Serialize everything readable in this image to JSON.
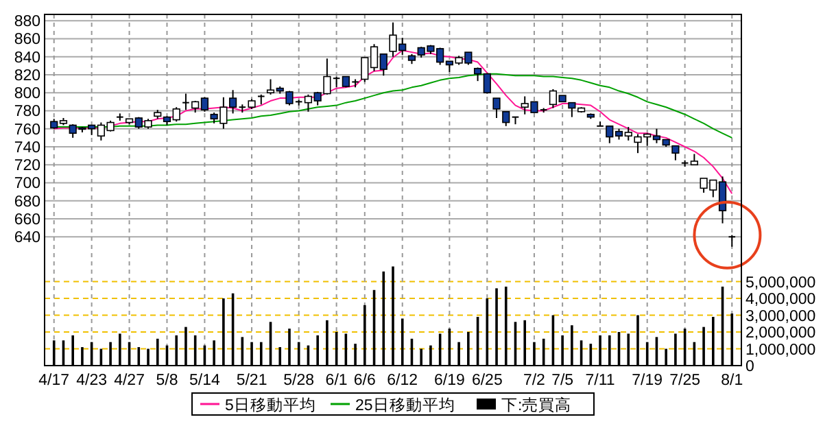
{
  "chart_data": {
    "type": "candlestick",
    "categories": [
      "4/17",
      null,
      null,
      null,
      "4/23",
      null,
      null,
      null,
      "4/27",
      null,
      null,
      null,
      "5/8",
      null,
      null,
      null,
      "5/14",
      null,
      null,
      null,
      null,
      "5/21",
      null,
      null,
      null,
      null,
      "5/28",
      null,
      null,
      null,
      "6/1",
      null,
      null,
      "6/6",
      null,
      null,
      null,
      "6/12",
      null,
      null,
      null,
      null,
      "6/19",
      null,
      null,
      null,
      "6/25",
      null,
      null,
      null,
      null,
      "7/2",
      null,
      null,
      "7/5",
      null,
      null,
      null,
      "7/11",
      null,
      null,
      null,
      null,
      "7/19",
      null,
      null,
      null,
      "7/25",
      null,
      null,
      null,
      null,
      "8/1"
    ],
    "ohlc": [
      [
        768,
        771,
        760,
        761
      ],
      [
        766,
        772,
        764,
        769
      ],
      [
        764,
        765,
        750,
        755
      ],
      [
        761,
        762,
        756,
        760
      ],
      [
        764,
        764,
        753,
        760
      ],
      [
        752,
        767,
        747,
        764
      ],
      [
        758,
        769,
        757,
        767
      ],
      [
        773,
        777,
        769,
        773
      ],
      [
        767,
        771,
        765,
        771
      ],
      [
        772,
        773,
        760,
        762
      ],
      [
        762,
        771,
        760,
        769
      ],
      [
        774,
        781,
        771,
        778
      ],
      [
        773,
        774,
        764,
        768
      ],
      [
        770,
        784,
        768,
        782
      ],
      [
        789,
        799,
        781,
        789
      ],
      [
        783,
        791,
        778,
        790
      ],
      [
        794,
        795,
        779,
        781
      ],
      [
        776,
        778,
        766,
        771
      ],
      [
        766,
        795,
        760,
        784
      ],
      [
        794,
        803,
        777,
        784
      ],
      [
        784,
        787,
        778,
        784
      ],
      [
        784,
        793,
        782,
        791
      ],
      [
        796,
        798,
        787,
        796
      ],
      [
        800,
        815,
        798,
        803
      ],
      [
        805,
        807,
        799,
        802
      ],
      [
        801,
        802,
        786,
        788
      ],
      [
        790,
        792,
        786,
        790
      ],
      [
        789,
        798,
        779,
        796
      ],
      [
        800,
        801,
        786,
        791
      ],
      [
        799,
        838,
        798,
        818
      ],
      [
        816,
        818,
        806,
        816
      ],
      [
        818,
        818,
        806,
        807
      ],
      [
        812,
        815,
        806,
        812
      ],
      [
        815,
        839,
        812,
        839
      ],
      [
        828,
        854,
        824,
        851
      ],
      [
        843,
        843,
        819,
        826
      ],
      [
        846,
        878,
        840,
        864
      ],
      [
        854,
        861,
        842,
        847
      ],
      [
        841,
        843,
        832,
        836
      ],
      [
        850,
        851,
        839,
        842
      ],
      [
        852,
        853,
        843,
        846
      ],
      [
        849,
        850,
        831,
        834
      ],
      [
        835,
        835,
        823,
        831
      ],
      [
        833,
        841,
        831,
        839
      ],
      [
        845,
        845,
        831,
        833
      ],
      [
        827,
        828,
        813,
        821
      ],
      [
        821,
        821,
        799,
        800
      ],
      [
        794,
        794,
        772,
        782
      ],
      [
        779,
        779,
        763,
        767
      ],
      [
        773,
        773,
        765,
        773
      ],
      [
        784,
        796,
        776,
        788
      ],
      [
        790,
        790,
        778,
        778
      ],
      [
        781,
        783,
        778,
        781
      ],
      [
        787,
        804,
        783,
        802
      ],
      [
        797,
        797,
        790,
        790
      ],
      [
        789,
        789,
        773,
        783
      ],
      [
        779,
        784,
        778,
        783
      ],
      [
        776,
        777,
        771,
        773
      ],
      [
        763,
        768,
        763,
        763
      ],
      [
        763,
        763,
        744,
        751
      ],
      [
        757,
        760,
        748,
        752
      ],
      [
        752,
        762,
        747,
        756
      ],
      [
        745,
        754,
        733,
        751
      ],
      [
        751,
        755,
        741,
        754
      ],
      [
        752,
        760,
        744,
        748
      ],
      [
        748,
        748,
        740,
        742
      ],
      [
        741,
        741,
        725,
        733
      ],
      [
        722,
        725,
        718,
        722
      ],
      [
        720,
        732,
        720,
        724
      ],
      [
        694,
        705,
        689,
        705
      ],
      [
        692,
        703,
        684,
        703
      ],
      [
        701,
        707,
        655,
        669
      ],
      [
        640,
        642,
        629,
        640
      ]
    ],
    "series": [
      {
        "type": "line",
        "name": "5日移動平均",
        "color": "#ff1493",
        "values": [
          760,
          761,
          761,
          761,
          761,
          761,
          763,
          766,
          767,
          768,
          768,
          771,
          772,
          774,
          780,
          782,
          782,
          783,
          784,
          783,
          780,
          783,
          786,
          791,
          794,
          794,
          795,
          795,
          795,
          800,
          805,
          806,
          808,
          818,
          824,
          825,
          839,
          847,
          845,
          843,
          844,
          841,
          840,
          838,
          837,
          834,
          822,
          810,
          797,
          786,
          781,
          780,
          780,
          784,
          788,
          788,
          787,
          786,
          779,
          770,
          765,
          760,
          755,
          755,
          752,
          750,
          745,
          740,
          735,
          728,
          718,
          705,
          688
        ]
      },
      {
        "type": "line",
        "name": "25日移動平均",
        "color": "#00a000",
        "values": [
          762,
          762,
          762,
          762,
          762,
          762,
          762,
          763,
          763,
          763,
          763,
          764,
          764,
          765,
          765,
          766,
          767,
          768,
          769,
          770,
          771,
          772,
          774,
          775,
          777,
          779,
          780,
          782,
          784,
          785,
          786,
          789,
          791,
          794,
          797,
          800,
          802,
          803,
          806,
          808,
          811,
          814,
          816,
          817,
          819,
          820,
          821,
          821,
          820,
          819,
          819,
          819,
          818,
          818,
          817,
          816,
          814,
          811,
          808,
          806,
          802,
          799,
          795,
          790,
          787,
          784,
          780,
          776,
          771,
          766,
          760,
          755,
          750
        ]
      },
      {
        "type": "bar",
        "axis": "y2",
        "name": "下:売買高",
        "color": "#000000",
        "values": [
          1500000,
          1500000,
          1800000,
          1100000,
          1400000,
          1000000,
          1400000,
          1900000,
          1400000,
          1100000,
          1000000,
          1600000,
          1200000,
          1800000,
          2300000,
          1800000,
          1200000,
          1500000,
          4000000,
          4300000,
          1700000,
          1400000,
          1400000,
          2600000,
          1100000,
          2200000,
          1400000,
          1200000,
          1800000,
          2700000,
          2000000,
          1900000,
          1300000,
          3600000,
          4500000,
          5600000,
          5900000,
          2800000,
          1600000,
          1000000,
          1200000,
          1900000,
          2200000,
          1400000,
          2000000,
          2900000,
          4000000,
          4600000,
          4700000,
          2600000,
          2700000,
          1400000,
          1600000,
          3000000,
          1800000,
          2400000,
          1500000,
          1300000,
          1800000,
          1800000,
          2000000,
          1900000,
          3000000,
          1400000,
          1700000,
          1000000,
          1900000,
          2200000,
          1400000,
          2300000,
          2900000,
          4700000,
          3100000
        ]
      }
    ],
    "ylim": [
      497,
      887
    ],
    "yticks": [
      640,
      660,
      680,
      700,
      720,
      740,
      760,
      780,
      800,
      820,
      840,
      860,
      880
    ],
    "y2lim": [
      0,
      20900000
    ],
    "y2ticks": [
      {
        "value": 0,
        "label": "0"
      },
      {
        "value": 1000000,
        "label": "1,000,000"
      },
      {
        "value": 2000000,
        "label": "2,000,000"
      },
      {
        "value": 3000000,
        "label": "3,000,000"
      },
      {
        "value": 4000000,
        "label": "4,000,000"
      },
      {
        "value": 5000000,
        "label": "5,000,000"
      }
    ],
    "grid": true,
    "legend": "bottom"
  }
}
